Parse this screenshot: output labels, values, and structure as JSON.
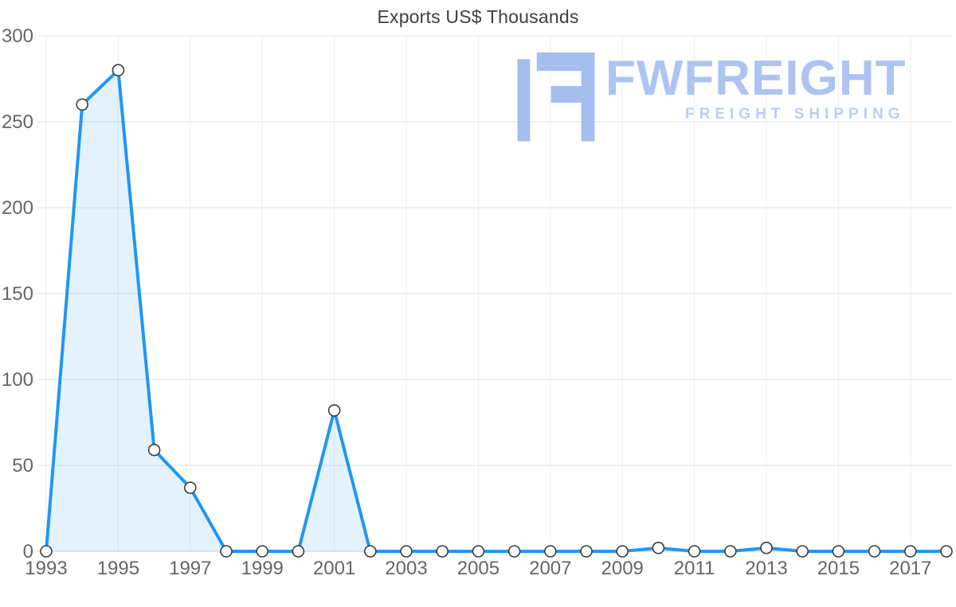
{
  "title": "Exports US$ Thousands",
  "logo": {
    "name": "FWFREIGHT",
    "tagline": "FREIGHT SHIPPING",
    "color": "#9fb9ee"
  },
  "chart_data": {
    "type": "area",
    "title": "Exports US$ Thousands",
    "xlabel": "",
    "ylabel": "",
    "x": [
      1993,
      1994,
      1995,
      1996,
      1997,
      1998,
      1999,
      2000,
      2001,
      2002,
      2003,
      2004,
      2005,
      2006,
      2007,
      2008,
      2009,
      2010,
      2011,
      2012,
      2013,
      2014,
      2015,
      2016,
      2017,
      2018
    ],
    "values": [
      0,
      260,
      280,
      59,
      37,
      0,
      0,
      0,
      82,
      0,
      0,
      0,
      0,
      0,
      0,
      0,
      0,
      2,
      0,
      0,
      2,
      0,
      0,
      0,
      0,
      0
    ],
    "ylim": [
      0,
      300
    ],
    "yticks": [
      0,
      50,
      100,
      150,
      200,
      250,
      300
    ],
    "xtick_labels": [
      "1993",
      "1995",
      "1997",
      "1999",
      "2001",
      "2003",
      "2005",
      "2007",
      "2009",
      "2011",
      "2013",
      "2015",
      "2017"
    ],
    "xtick_indices": [
      0,
      2,
      4,
      6,
      8,
      10,
      12,
      14,
      16,
      18,
      20,
      22,
      24
    ],
    "grid": true,
    "legend_position": "none",
    "line_color": "#2196f3",
    "fill_color": "rgba(33,150,243,0.12)",
    "marker_fill": "#ffffff",
    "marker_stroke": "#3c3c3c",
    "grid_color": "#e2e2e2",
    "axis_label_color": "#666666"
  }
}
